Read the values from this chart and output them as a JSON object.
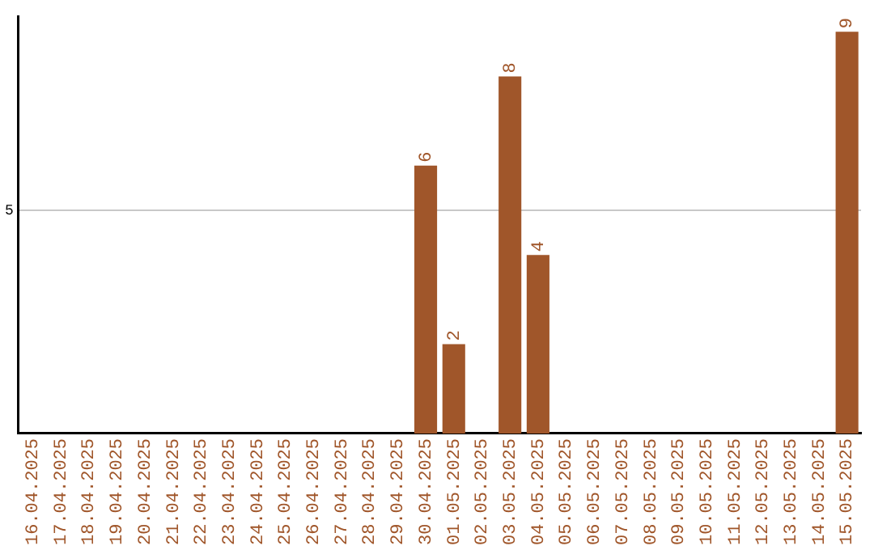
{
  "chart_data": {
    "type": "bar",
    "categories": [
      "16.04.2025",
      "17.04.2025",
      "18.04.2025",
      "19.04.2025",
      "20.04.2025",
      "21.04.2025",
      "22.04.2025",
      "23.04.2025",
      "24.04.2025",
      "25.04.2025",
      "26.04.2025",
      "27.04.2025",
      "28.04.2025",
      "29.04.2025",
      "30.04.2025",
      "01.05.2025",
      "02.05.2025",
      "03.05.2025",
      "04.05.2025",
      "05.05.2025",
      "06.05.2025",
      "07.05.2025",
      "08.05.2025",
      "09.05.2025",
      "10.05.2025",
      "11.05.2025",
      "12.05.2025",
      "13.05.2025",
      "14.05.2025",
      "15.05.2025"
    ],
    "values": [
      null,
      null,
      null,
      null,
      null,
      null,
      null,
      null,
      null,
      null,
      null,
      null,
      null,
      null,
      6,
      2,
      null,
      8,
      4,
      null,
      null,
      null,
      null,
      null,
      null,
      null,
      null,
      null,
      null,
      9
    ],
    "color": "#a0562a",
    "ylim": [
      0,
      9.35
    ],
    "yticks": [
      5
    ],
    "grid": "y",
    "data_labels": true,
    "legend": false
  }
}
